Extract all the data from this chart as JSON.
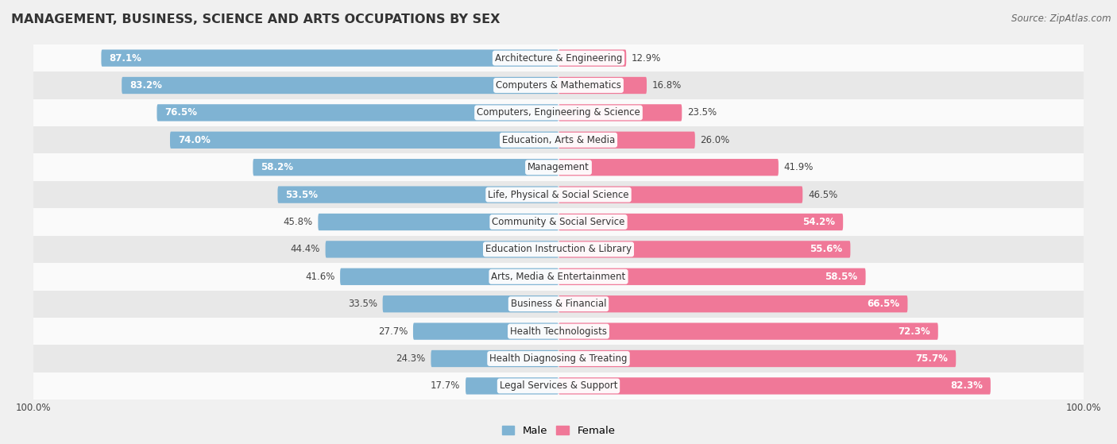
{
  "title": "MANAGEMENT, BUSINESS, SCIENCE AND ARTS OCCUPATIONS BY SEX",
  "source": "Source: ZipAtlas.com",
  "categories": [
    "Architecture & Engineering",
    "Computers & Mathematics",
    "Computers, Engineering & Science",
    "Education, Arts & Media",
    "Management",
    "Life, Physical & Social Science",
    "Community & Social Service",
    "Education Instruction & Library",
    "Arts, Media & Entertainment",
    "Business & Financial",
    "Health Technologists",
    "Health Diagnosing & Treating",
    "Legal Services & Support"
  ],
  "male_pct": [
    87.1,
    83.2,
    76.5,
    74.0,
    58.2,
    53.5,
    45.8,
    44.4,
    41.6,
    33.5,
    27.7,
    24.3,
    17.7
  ],
  "female_pct": [
    12.9,
    16.8,
    23.5,
    26.0,
    41.9,
    46.5,
    54.2,
    55.6,
    58.5,
    66.5,
    72.3,
    75.7,
    82.3
  ],
  "male_color": "#7fb3d3",
  "female_color": "#f07898",
  "bar_height": 0.62,
  "bg_color": "#f0f0f0",
  "row_bg_light": "#fafafa",
  "row_bg_dark": "#e8e8e8",
  "label_fontsize": 8.5,
  "title_fontsize": 11.5,
  "source_fontsize": 8.5,
  "axis_label_fontsize": 8.5
}
